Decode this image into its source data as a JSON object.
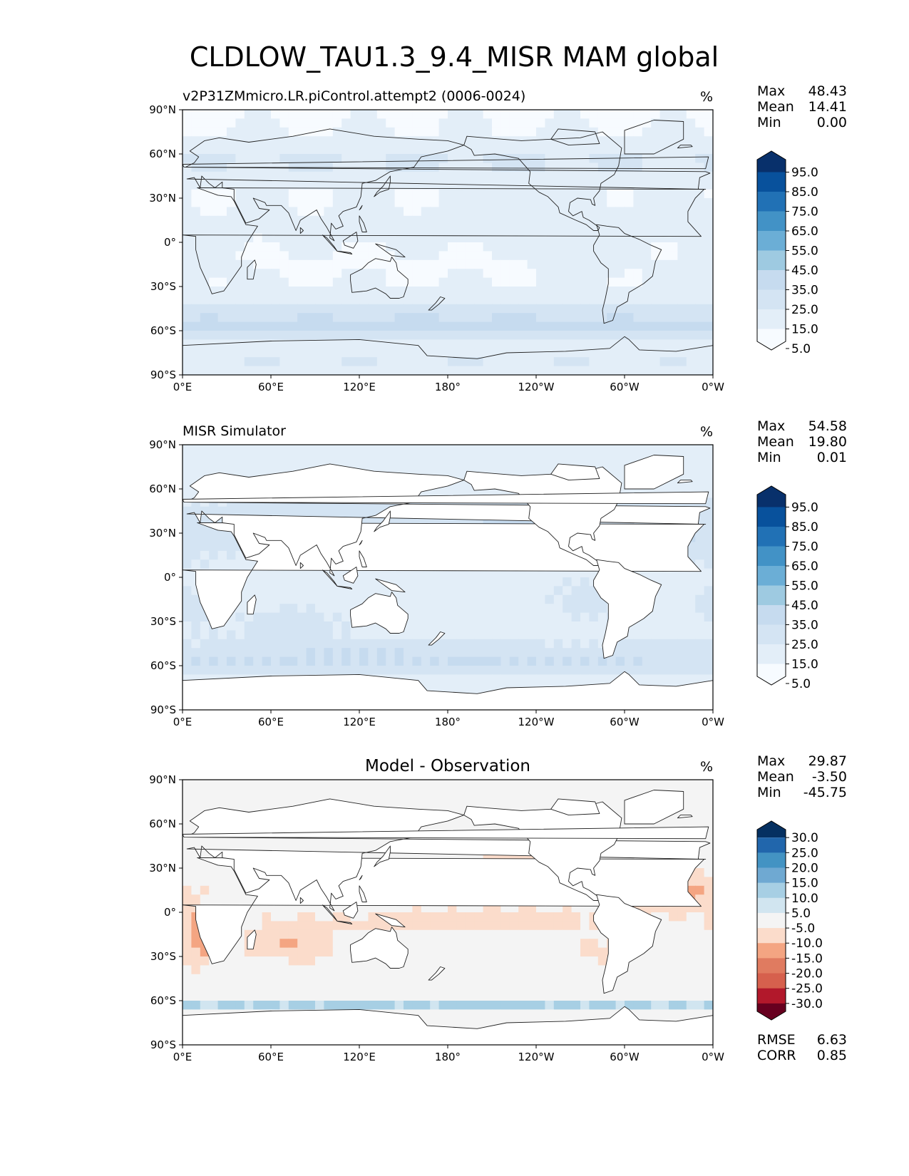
{
  "figure_title": "CLDLOW_TAU1.3_9.4_MISR MAM global",
  "chart_data": [
    {
      "type": "heatmap",
      "title": "v2P31ZMmicro.LR.piControl.attempt2 (0006-0024)",
      "units": "%",
      "xticks": [
        "0°E",
        "60°E",
        "120°E",
        "180°",
        "120°W",
        "60°W",
        "0°W"
      ],
      "yticks": [
        "90°N",
        "60°N",
        "30°N",
        "0°",
        "30°S",
        "60°S",
        "90°S"
      ],
      "xlim": [
        0,
        360
      ],
      "ylim": [
        -90,
        90
      ],
      "stats": [
        {
          "label": "Max",
          "value": "48.43"
        },
        {
          "label": "Mean",
          "value": "14.41"
        },
        {
          "label": "Min",
          "value": "0.00"
        }
      ],
      "colorbar": {
        "labels": [
          "95.0",
          "85.0",
          "75.0",
          "65.0",
          "55.0",
          "45.0",
          "35.0",
          "25.0",
          "15.0",
          "5.0"
        ],
        "colors": [
          "#08306b",
          "#08519c",
          "#2171b5",
          "#4292c6",
          "#6baed6",
          "#9ecae1",
          "#c6dbef",
          "#d4e4f3",
          "#e3eef8",
          "#f7fbff"
        ],
        "extend": "both"
      },
      "field_scheme": "blue",
      "land_masked": false
    },
    {
      "type": "heatmap",
      "title": "MISR Simulator",
      "units": "%",
      "xticks": [
        "0°E",
        "60°E",
        "120°E",
        "180°",
        "120°W",
        "60°W",
        "0°W"
      ],
      "yticks": [
        "90°N",
        "60°N",
        "30°N",
        "0°",
        "30°S",
        "60°S",
        "90°S"
      ],
      "xlim": [
        0,
        360
      ],
      "ylim": [
        -90,
        90
      ],
      "stats": [
        {
          "label": "Max",
          "value": "54.58"
        },
        {
          "label": "Mean",
          "value": "19.80"
        },
        {
          "label": "Min",
          "value": "0.01"
        }
      ],
      "colorbar": {
        "labels": [
          "95.0",
          "85.0",
          "75.0",
          "65.0",
          "55.0",
          "45.0",
          "35.0",
          "25.0",
          "15.0",
          "5.0"
        ],
        "colors": [
          "#08306b",
          "#08519c",
          "#2171b5",
          "#4292c6",
          "#6baed6",
          "#9ecae1",
          "#c6dbef",
          "#d4e4f3",
          "#e3eef8",
          "#f7fbff"
        ],
        "extend": "both"
      },
      "field_scheme": "blue",
      "land_masked": true
    },
    {
      "type": "heatmap",
      "title": "Model - Observation",
      "units": "%",
      "xticks": [
        "0°E",
        "60°E",
        "120°E",
        "180°",
        "120°W",
        "60°W",
        "0°W"
      ],
      "yticks": [
        "90°N",
        "60°N",
        "30°N",
        "0°",
        "30°S",
        "60°S",
        "90°S"
      ],
      "xlim": [
        0,
        360
      ],
      "ylim": [
        -90,
        90
      ],
      "stats": [
        {
          "label": "Max",
          "value": "29.87"
        },
        {
          "label": "Mean",
          "value": "-3.50"
        },
        {
          "label": "Min",
          "value": "-45.75"
        }
      ],
      "colorbar": {
        "labels": [
          "30.0",
          "25.0",
          "20.0",
          "15.0",
          "10.0",
          "5.0",
          "-5.0",
          "-10.0",
          "-15.0",
          "-20.0",
          "-25.0",
          "-30.0"
        ],
        "colors": [
          "#053061",
          "#2166ac",
          "#4393c3",
          "#6fa9d2",
          "#a7cfe4",
          "#d1e5f0",
          "#f4f4f4",
          "#fbdccb",
          "#f4a582",
          "#e07b60",
          "#d6604d",
          "#b2182b",
          "#67001f"
        ],
        "extend": "both"
      },
      "field_scheme": "diff",
      "land_masked": true,
      "metrics": [
        {
          "label": "RMSE",
          "value": "6.63"
        },
        {
          "label": "CORR",
          "value": "0.85"
        }
      ]
    }
  ]
}
